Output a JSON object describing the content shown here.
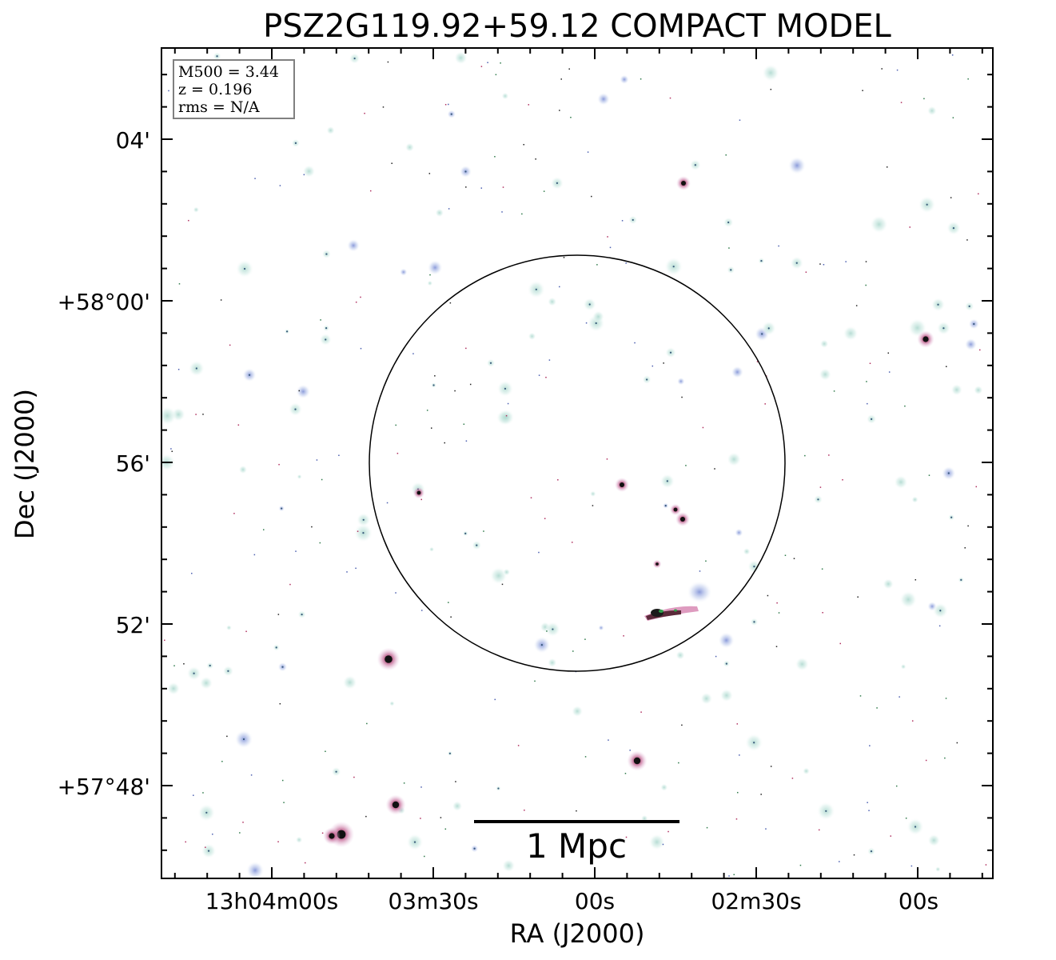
{
  "figure": {
    "title": "PSZ2G119.92+59.12 COMPACT MODEL",
    "xlabel": "RA (J2000)",
    "ylabel": "Dec (J2000)",
    "x_ticks": [
      "13h04m00s",
      "03m30s",
      "00s",
      "02m30s",
      "00s"
    ],
    "y_ticks": [
      "04'",
      "+58°00'",
      "56'",
      "52'",
      "+57°48'"
    ]
  },
  "info_box": {
    "mass": "M500 = 3.44",
    "redshift": "z = 0.196",
    "rms": "rms = N/A"
  },
  "scale_bar": {
    "label": "1 Mpc"
  },
  "colors": {
    "frame": "#000000",
    "source_halo": "#c9e6de",
    "source_blue": "#8fa3d9",
    "source_pink": "#d98fb0",
    "source_core": "#111111",
    "info_border": "#808080"
  }
}
